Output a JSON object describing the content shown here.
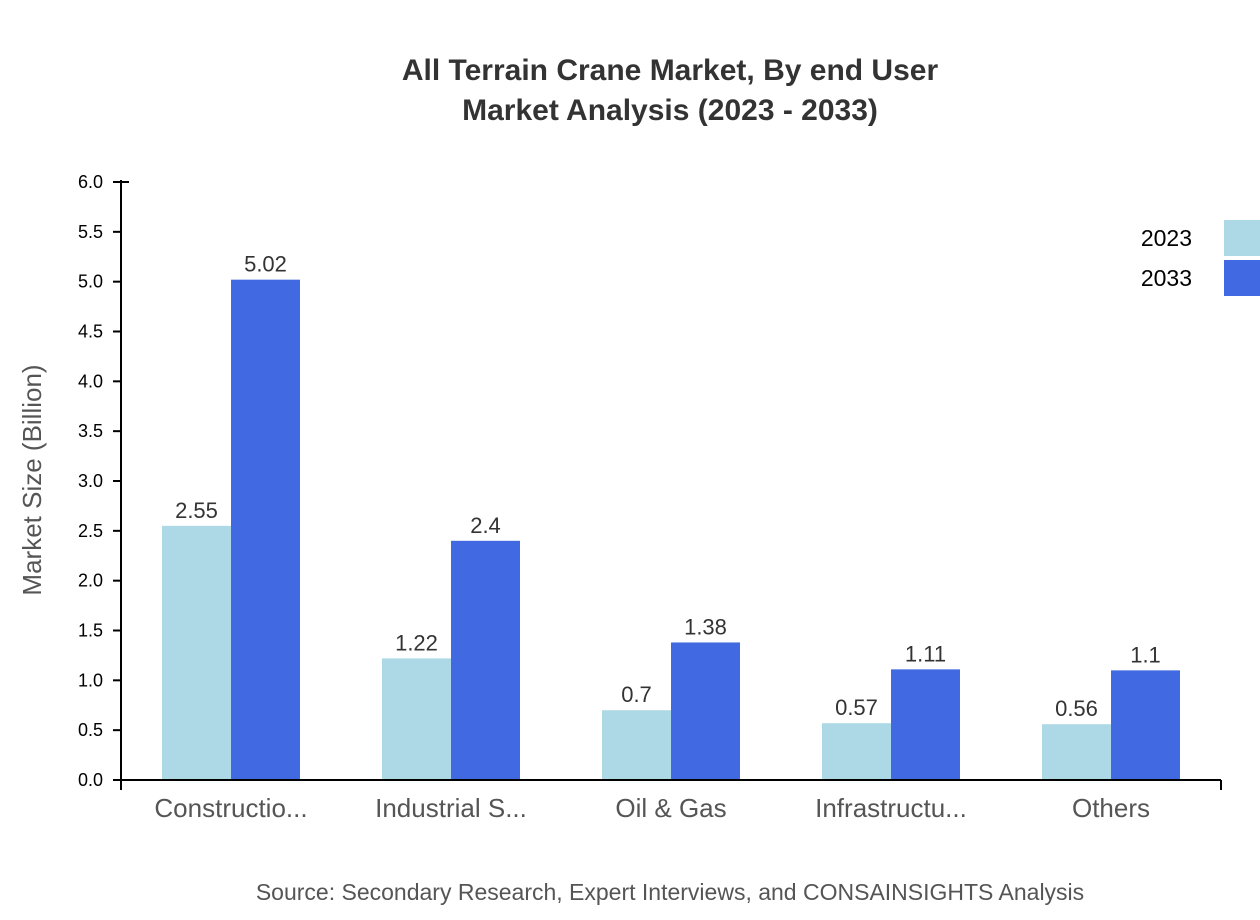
{
  "chart_data": {
    "type": "bar",
    "title": "All Terrain Crane Market, By end User",
    "subtitle": "Market Analysis (2023 - 2033)",
    "xlabel": "",
    "ylabel": "Market Size (Billion)",
    "ylim": [
      0,
      6.0
    ],
    "yticks": [
      "0.0",
      "0.5",
      "1.0",
      "1.5",
      "2.0",
      "2.5",
      "3.0",
      "3.5",
      "4.0",
      "4.5",
      "5.0",
      "5.5",
      "6.0"
    ],
    "categories": [
      "Constructio...",
      "Industrial S...",
      "Oil & Gas",
      "Infrastructu...",
      "Others"
    ],
    "series": [
      {
        "name": "2023",
        "color": "#add8e6",
        "values": [
          2.55,
          1.22,
          0.7,
          0.57,
          0.56
        ],
        "labels": [
          "2.55",
          "1.22",
          "0.7",
          "0.57",
          "0.56"
        ]
      },
      {
        "name": "2033",
        "color": "#4169e1",
        "values": [
          5.02,
          2.4,
          1.38,
          1.11,
          1.1
        ],
        "labels": [
          "5.02",
          "2.4",
          "1.38",
          "1.11",
          "1.1"
        ]
      }
    ],
    "legend_placement": "top-right",
    "grid": false
  },
  "source": "Source: Secondary Research, Expert Interviews, and CONSAINSIGHTS Analysis"
}
